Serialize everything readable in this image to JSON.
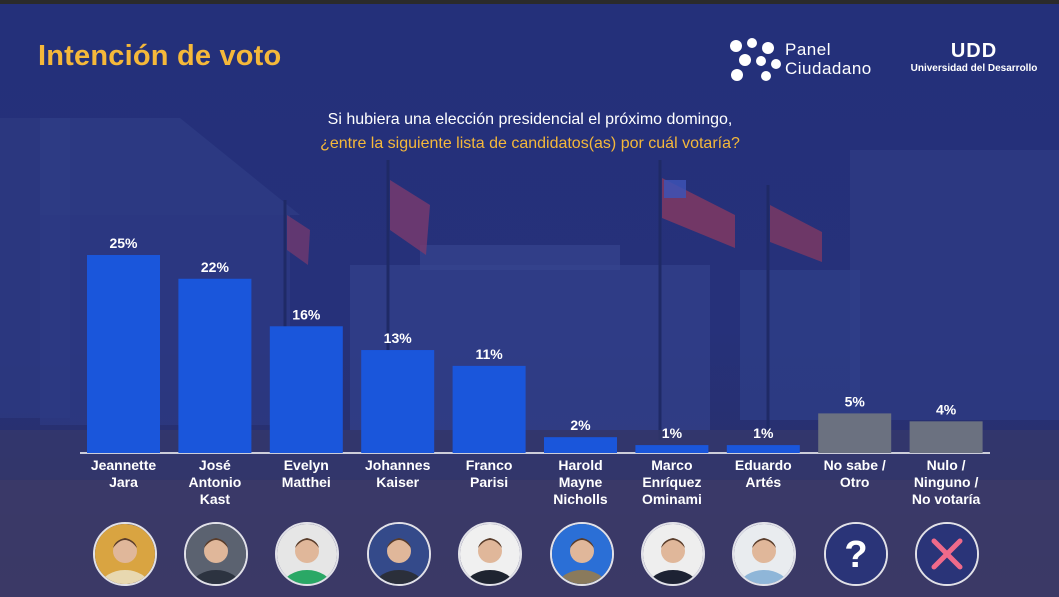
{
  "header": {
    "title": "Intención de voto",
    "panel_logo_line1": "Panel",
    "panel_logo_line2": "Ciudadano",
    "udd_logo_mark": "UDD",
    "udd_logo_sub": "Universidad del Desarrollo"
  },
  "question": {
    "line1": "Si hubiera una elección presidencial el próximo domingo,",
    "line2": "¿entre la siguiente lista de candidatos(as) por cuál votaría?"
  },
  "colors": {
    "title": "#f5b83a",
    "candidate_bar": "#1a56db",
    "other_bar": "#6b7180",
    "background": "#1f2a6b"
  },
  "chart_data": {
    "type": "bar",
    "title": "Intención de voto",
    "xlabel": "",
    "ylabel": "",
    "ylim": [
      0,
      25
    ],
    "categories": [
      "Jeannette Jara",
      "José Antonio Kast",
      "Evelyn Matthei",
      "Johannes Kaiser",
      "Franco Parisi",
      "Harold Mayne Nicholls",
      "Marco Enríquez Ominami",
      "Eduardo Artés",
      "No sabe / Otro",
      "Nulo / Ninguno / No votaría"
    ],
    "category_lines": [
      [
        "Jeannette",
        "Jara"
      ],
      [
        "José",
        "Antonio",
        "Kast"
      ],
      [
        "Evelyn",
        "Matthei"
      ],
      [
        "Johannes",
        "Kaiser"
      ],
      [
        "Franco",
        "Parisi"
      ],
      [
        "Harold",
        "Mayne",
        "Nicholls"
      ],
      [
        "Marco",
        "Enríquez",
        "Ominami"
      ],
      [
        "Eduardo",
        "Artés"
      ],
      [
        "No sabe /",
        "Otro"
      ],
      [
        "Nulo /",
        "Ninguno /",
        "No votaría"
      ]
    ],
    "values": [
      25,
      22,
      16,
      13,
      11,
      2,
      1,
      1,
      5,
      4
    ],
    "value_labels": [
      "25%",
      "22%",
      "16%",
      "13%",
      "11%",
      "2%",
      "1%",
      "1%",
      "5%",
      "4%"
    ],
    "bar_kinds": [
      "candidate",
      "candidate",
      "candidate",
      "candidate",
      "candidate",
      "candidate",
      "candidate",
      "candidate",
      "other",
      "other"
    ],
    "unit": "%"
  },
  "avatars": [
    {
      "name": "Jeannette Jara",
      "icon": "person-photo-icon",
      "bg": "#d9a441",
      "shirt": "#e8d8b0"
    },
    {
      "name": "José Antonio Kast",
      "icon": "person-photo-icon",
      "bg": "#5b6270",
      "shirt": "#2c3340"
    },
    {
      "name": "Evelyn Matthei",
      "icon": "person-photo-icon",
      "bg": "#e6e6e6",
      "shirt": "#2aa866"
    },
    {
      "name": "Johannes Kaiser",
      "icon": "person-photo-icon",
      "bg": "#344a8a",
      "shirt": "#2b2f3a"
    },
    {
      "name": "Franco Parisi",
      "icon": "person-photo-icon",
      "bg": "#f0f0f0",
      "shirt": "#1e2430"
    },
    {
      "name": "Harold Mayne Nicholls",
      "icon": "person-photo-icon",
      "bg": "#2b6fd6",
      "shirt": "#8a7a5c"
    },
    {
      "name": "Marco Enríquez Ominami",
      "icon": "person-photo-icon",
      "bg": "#eeeeee",
      "shirt": "#1d2233"
    },
    {
      "name": "Eduardo Artés",
      "icon": "person-photo-icon",
      "bg": "#e9ecef",
      "shirt": "#8fb6d8"
    },
    {
      "name": "No sabe / Otro",
      "icon": "question-mark-icon",
      "bg": "#2a3478",
      "shirt": ""
    },
    {
      "name": "Nulo / Ninguno / No votaría",
      "icon": "cross-icon",
      "bg": "#2a3478",
      "shirt": ""
    }
  ]
}
